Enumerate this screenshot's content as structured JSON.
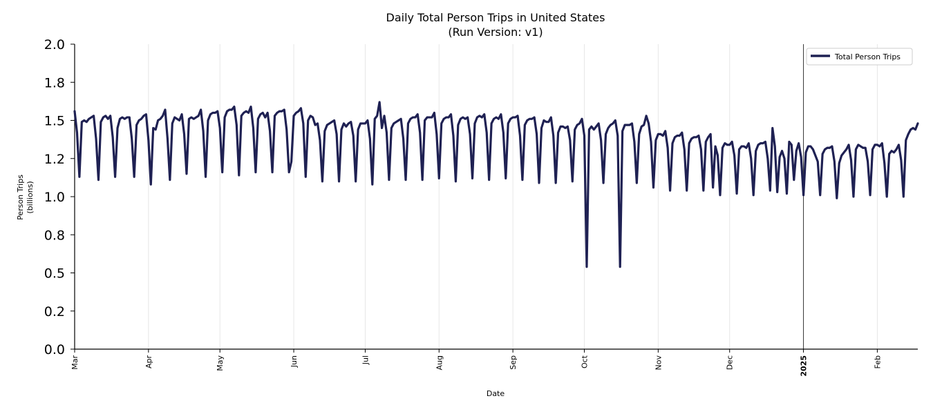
{
  "chart_data": {
    "type": "line",
    "title": "Daily Total Person Trips in United States",
    "subtitle": "(Run Version: v1)",
    "xlabel": "Date",
    "ylabel": "Person Trips",
    "ylabel_unit": "(billions)",
    "ylim": [
      0,
      2.0
    ],
    "yticks": [
      "0.0",
      "0.2",
      "0.5",
      "0.8",
      "1.0",
      "1.2",
      "1.5",
      "1.8",
      "2.0"
    ],
    "x_start": "2024-03-01",
    "x_end": "2025-02-28",
    "x_ticks": [
      {
        "label": "Mar",
        "day": 0
      },
      {
        "label": "Apr",
        "day": 31
      },
      {
        "label": "May",
        "day": 61
      },
      {
        "label": "Jun",
        "day": 92
      },
      {
        "label": "Jul",
        "day": 122
      },
      {
        "label": "Aug",
        "day": 153
      },
      {
        "label": "Sep",
        "day": 184
      },
      {
        "label": "Oct",
        "day": 214
      },
      {
        "label": "Nov",
        "day": 245
      },
      {
        "label": "Dec",
        "day": 275
      },
      {
        "label": "2025",
        "day": 306,
        "bold": true
      },
      {
        "label": "Feb",
        "day": 337
      }
    ],
    "year_marker_day": 306,
    "legend": {
      "label": "Total Person Trips",
      "position": "top-right"
    },
    "series": [
      {
        "name": "Total Person Trips",
        "color": "#1f2153",
        "values": [
          1.56,
          1.42,
          1.13,
          1.49,
          1.5,
          1.49,
          1.51,
          1.52,
          1.53,
          1.38,
          1.11,
          1.49,
          1.52,
          1.53,
          1.51,
          1.53,
          1.39,
          1.13,
          1.45,
          1.51,
          1.52,
          1.51,
          1.52,
          1.52,
          1.38,
          1.13,
          1.47,
          1.5,
          1.51,
          1.53,
          1.54,
          1.37,
          1.08,
          1.45,
          1.44,
          1.5,
          1.51,
          1.53,
          1.57,
          1.38,
          1.11,
          1.48,
          1.52,
          1.51,
          1.5,
          1.54,
          1.41,
          1.15,
          1.51,
          1.52,
          1.51,
          1.52,
          1.53,
          1.57,
          1.43,
          1.13,
          1.5,
          1.54,
          1.55,
          1.55,
          1.56,
          1.45,
          1.16,
          1.52,
          1.56,
          1.57,
          1.57,
          1.59,
          1.47,
          1.14,
          1.53,
          1.55,
          1.56,
          1.55,
          1.59,
          1.45,
          1.16,
          1.51,
          1.54,
          1.55,
          1.52,
          1.55,
          1.43,
          1.16,
          1.53,
          1.55,
          1.56,
          1.56,
          1.57,
          1.44,
          1.16,
          1.23,
          1.53,
          1.55,
          1.56,
          1.58,
          1.48,
          1.13,
          1.5,
          1.53,
          1.52,
          1.47,
          1.48,
          1.37,
          1.1,
          1.43,
          1.47,
          1.48,
          1.49,
          1.5,
          1.41,
          1.1,
          1.44,
          1.48,
          1.46,
          1.48,
          1.49,
          1.4,
          1.1,
          1.44,
          1.48,
          1.48,
          1.48,
          1.5,
          1.38,
          1.08,
          1.51,
          1.53,
          1.62,
          1.45,
          1.53,
          1.42,
          1.11,
          1.45,
          1.48,
          1.49,
          1.5,
          1.51,
          1.38,
          1.11,
          1.48,
          1.51,
          1.52,
          1.52,
          1.54,
          1.42,
          1.11,
          1.5,
          1.52,
          1.52,
          1.52,
          1.55,
          1.41,
          1.12,
          1.48,
          1.51,
          1.52,
          1.52,
          1.54,
          1.4,
          1.1,
          1.47,
          1.51,
          1.52,
          1.51,
          1.52,
          1.41,
          1.12,
          1.48,
          1.52,
          1.53,
          1.52,
          1.54,
          1.42,
          1.11,
          1.48,
          1.51,
          1.52,
          1.51,
          1.54,
          1.42,
          1.12,
          1.48,
          1.51,
          1.52,
          1.52,
          1.53,
          1.4,
          1.11,
          1.47,
          1.5,
          1.51,
          1.51,
          1.52,
          1.41,
          1.09,
          1.45,
          1.5,
          1.49,
          1.49,
          1.52,
          1.4,
          1.09,
          1.42,
          1.46,
          1.46,
          1.45,
          1.46,
          1.37,
          1.1,
          1.44,
          1.47,
          1.48,
          1.51,
          1.4,
          0.54,
          1.44,
          1.46,
          1.44,
          1.46,
          1.48,
          1.37,
          1.09,
          1.41,
          1.45,
          1.47,
          1.48,
          1.5,
          1.4,
          0.54,
          1.43,
          1.47,
          1.47,
          1.47,
          1.48,
          1.36,
          1.09,
          1.41,
          1.46,
          1.47,
          1.53,
          1.48,
          1.36,
          1.06,
          1.37,
          1.41,
          1.41,
          1.4,
          1.43,
          1.32,
          1.04,
          1.35,
          1.39,
          1.4,
          1.4,
          1.42,
          1.31,
          1.04,
          1.35,
          1.38,
          1.39,
          1.39,
          1.4,
          1.31,
          1.04,
          1.36,
          1.39,
          1.41,
          1.06,
          1.33,
          1.27,
          1.01,
          1.32,
          1.35,
          1.34,
          1.34,
          1.36,
          1.27,
          1.02,
          1.31,
          1.33,
          1.33,
          1.32,
          1.35,
          1.25,
          1.01,
          1.3,
          1.34,
          1.35,
          1.35,
          1.36,
          1.25,
          1.04,
          1.45,
          1.33,
          1.03,
          1.26,
          1.3,
          1.25,
          1.02,
          1.36,
          1.34,
          1.11,
          1.3,
          1.35,
          1.26,
          1.01,
          1.29,
          1.33,
          1.33,
          1.31,
          1.27,
          1.23,
          1.01,
          1.28,
          1.31,
          1.32,
          1.32,
          1.33,
          1.23,
          0.99,
          1.22,
          1.27,
          1.29,
          1.31,
          1.34,
          1.24,
          1.0,
          1.31,
          1.34,
          1.33,
          1.32,
          1.32,
          1.23,
          1.01,
          1.31,
          1.34,
          1.34,
          1.33,
          1.35,
          1.22,
          1.0,
          1.28,
          1.3,
          1.29,
          1.31,
          1.34,
          1.24,
          1.0,
          1.37,
          1.41,
          1.44,
          1.45,
          1.44,
          1.48
        ]
      }
    ]
  }
}
